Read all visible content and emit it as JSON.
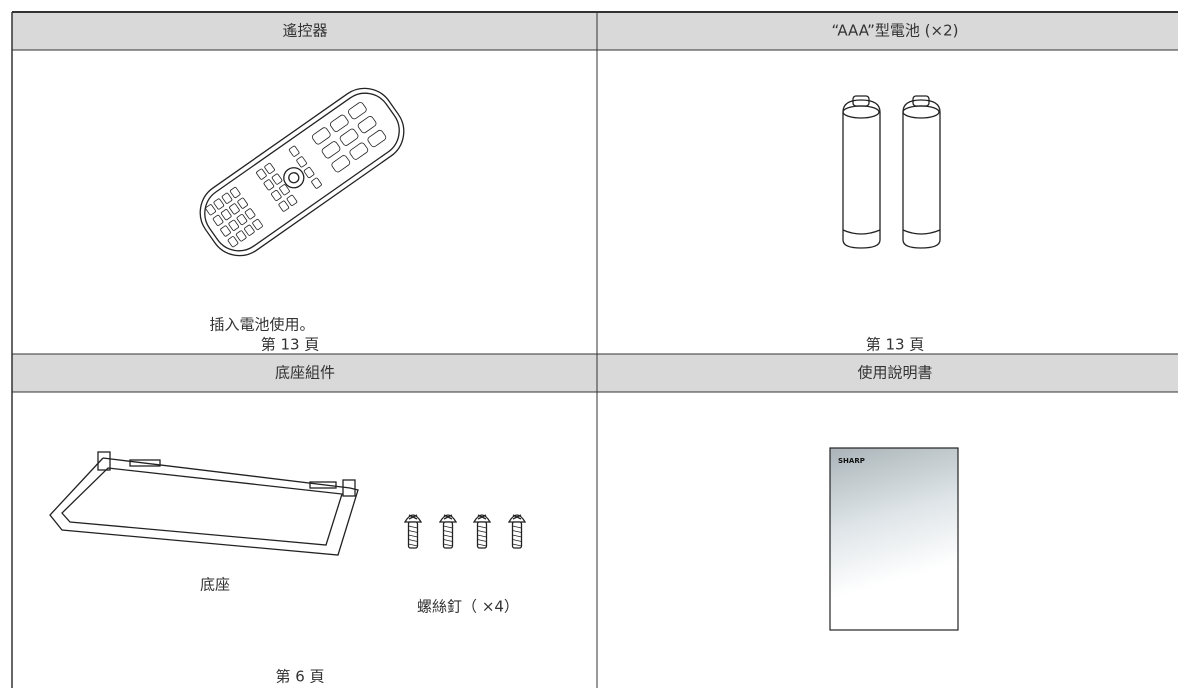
{
  "cells": [
    {
      "header": "遙控器",
      "captions": [
        "插入電池使用。",
        "第 13 頁"
      ]
    },
    {
      "header": "“AAA”型電池 (×2)",
      "captions": [
        "第 13 頁"
      ]
    },
    {
      "header": "底座組件",
      "captions": [
        "底座",
        "螺絲釘（ ×4）",
        "第 6 頁"
      ]
    },
    {
      "header": "使用說明書",
      "cover_text": "SHARP"
    }
  ]
}
